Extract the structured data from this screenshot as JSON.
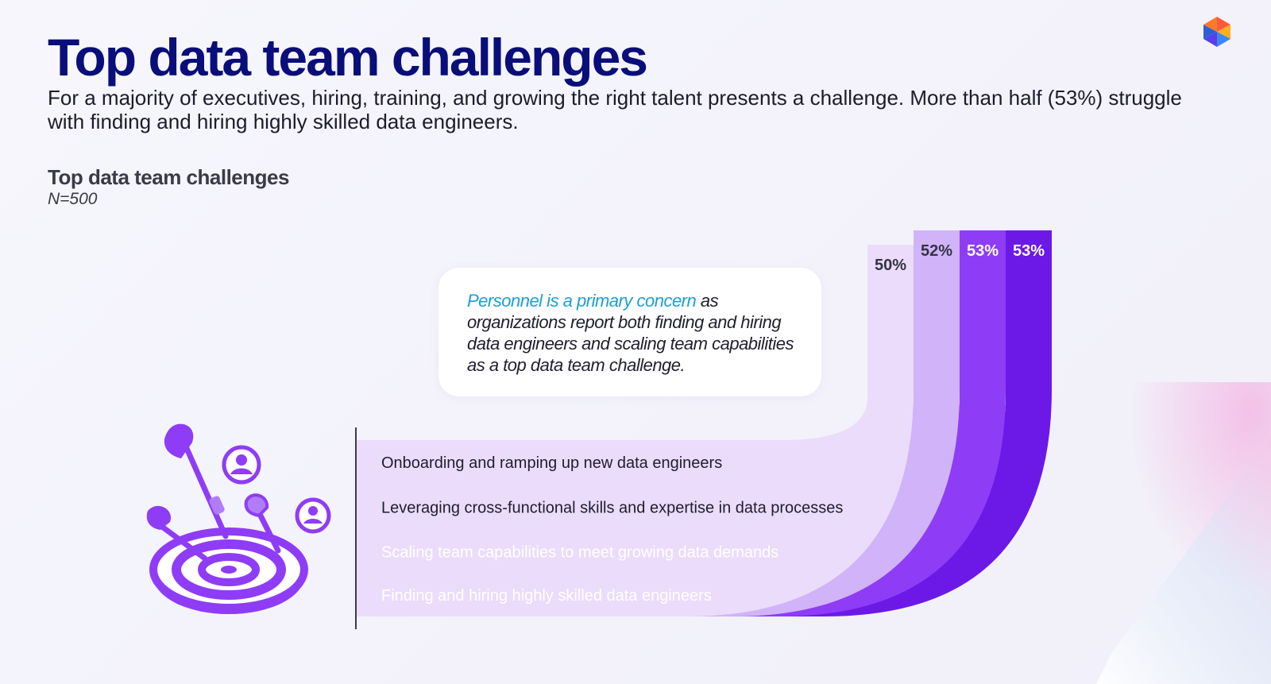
{
  "header": {
    "title": "Top data team challenges",
    "subtitle": "For a majority of executives, hiring, training, and growing the right talent presents a challenge. More than half (53%) struggle with finding and hiring highly skilled data engineers."
  },
  "callout": {
    "highlight": "Personnel is a primary concern",
    "text": " as organizations report both finding and hiring data engineers and scaling team capabilities as a top data team challenge."
  },
  "icons": {
    "logo": "hexagon-logo-icon",
    "illustration": "dartboard-target-icon"
  },
  "colors": {
    "title": "#0a0e7a",
    "highlight": "#19a0d4",
    "bands": [
      "#ebdcfb",
      "#d1b3fa",
      "#8f3cf7",
      "#6c19e8"
    ]
  },
  "chart_data": {
    "type": "bar",
    "title": "Top data team challenges",
    "subtitle": "N=500",
    "unit": "%",
    "categories": [
      "Onboarding and ramping up new data engineers",
      "Leveraging cross-functional skills and expertise in data processes",
      "Scaling team capabilities to meet growing data demands",
      "Finding and hiring highly skilled data engineers"
    ],
    "values": [
      50,
      52,
      53,
      53
    ],
    "value_labels": [
      "50%",
      "52%",
      "53%",
      "53%"
    ]
  }
}
